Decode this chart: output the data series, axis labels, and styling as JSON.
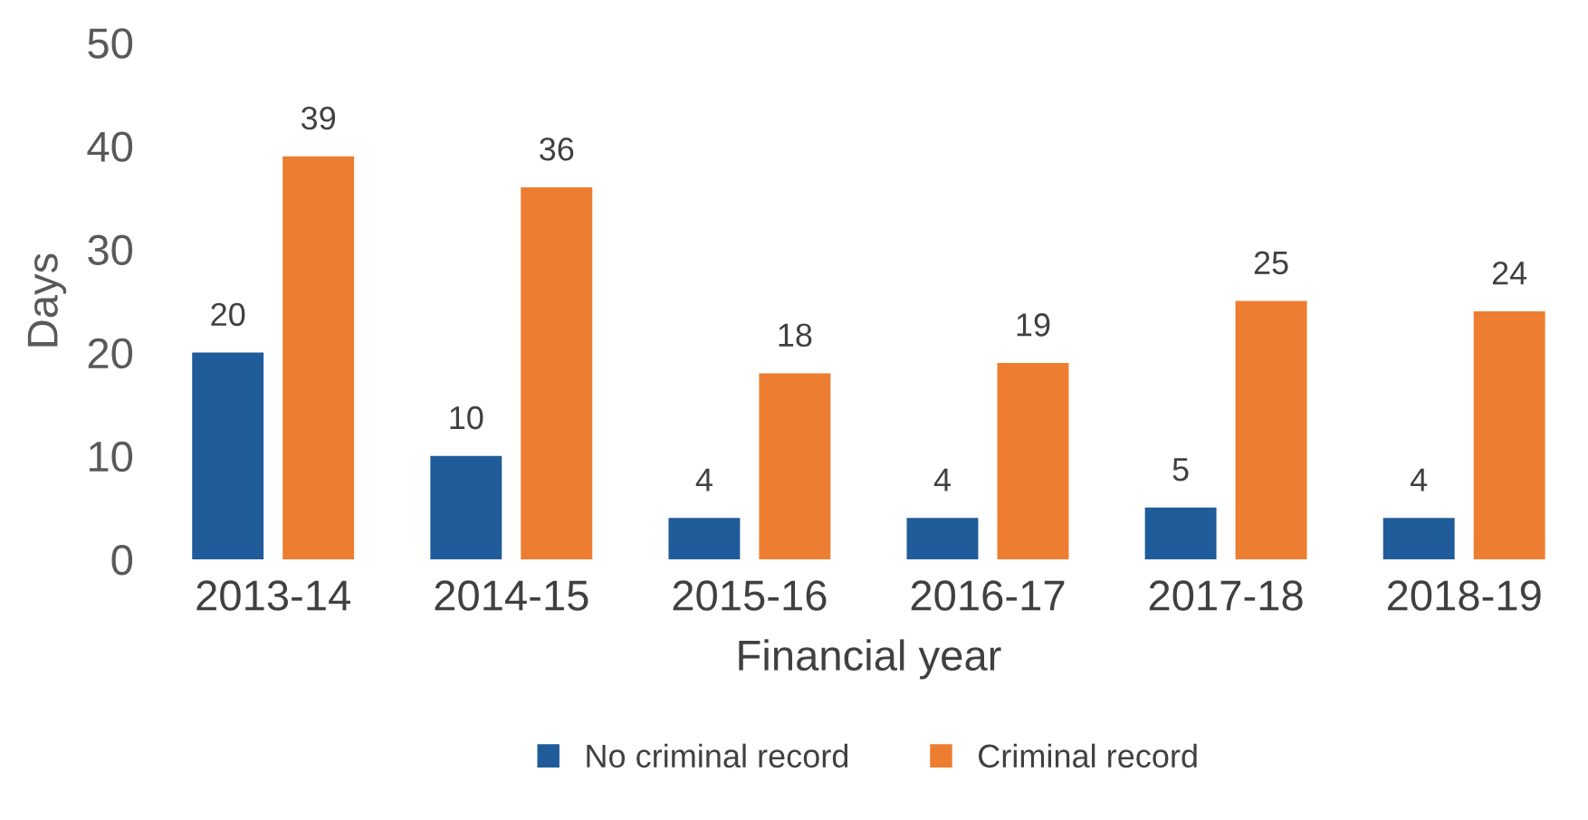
{
  "chart_data": {
    "type": "bar",
    "xlabel": "Financial year",
    "ylabel": "Days",
    "categories": [
      "2013-14",
      "2014-15",
      "2015-16",
      "2016-17",
      "2017-18",
      "2018-19"
    ],
    "series": [
      {
        "name": "No criminal record",
        "color": "#1f5c99",
        "values": [
          20,
          10,
          4,
          4,
          5,
          4
        ]
      },
      {
        "name": "Criminal record",
        "color": "#ed7d31",
        "values": [
          39,
          36,
          18,
          19,
          25,
          24
        ]
      }
    ],
    "ylim": [
      0,
      50
    ],
    "yticks": [
      0,
      10,
      20,
      30,
      40,
      50
    ],
    "grid": false,
    "legend": "bottom",
    "data_labels": true
  }
}
